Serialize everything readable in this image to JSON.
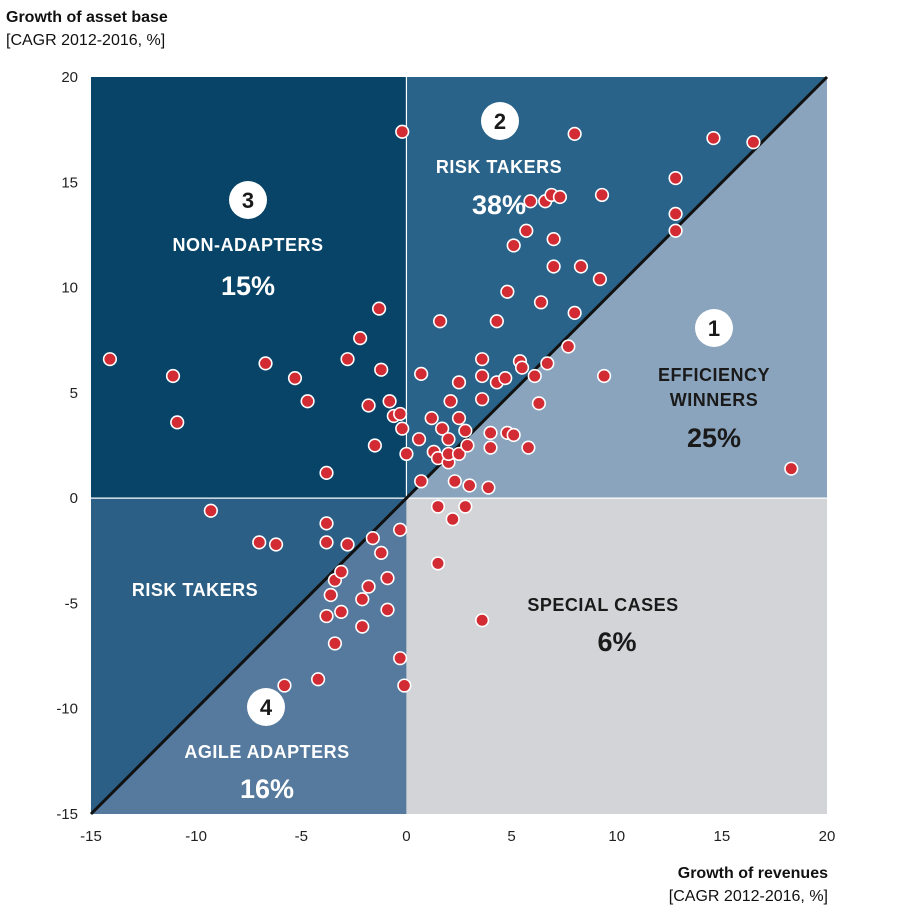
{
  "chart_data": {
    "type": "scatter",
    "ylabel_title": "Growth of asset base",
    "ylabel_sub": "[CAGR 2012-2016, %]",
    "xlabel_title": "Growth of revenues",
    "xlabel_sub": "[CAGR 2012-2016, %]",
    "xlim": [
      -15,
      20
    ],
    "ylim": [
      -15,
      20
    ],
    "xticks": [
      -15,
      -10,
      -5,
      0,
      5,
      10,
      15,
      20
    ],
    "yticks": [
      -15,
      -10,
      -5,
      0,
      5,
      10,
      15,
      20
    ],
    "colors": {
      "non_adapters": "#074468",
      "risk_takers_upper": "#2a6389",
      "efficiency": "#8aa4bd",
      "risk_takers_lower": "#2b5f86",
      "agile": "#557a9e",
      "special": "#d2d4d7",
      "diagonal": "#111111",
      "point": "#d22b33",
      "label_light": "#ffffff",
      "label_dark": "#1a1a1a"
    },
    "quadrants": [
      {
        "id": "risk_takers_upper",
        "number": "2",
        "label": "RISK TAKERS",
        "percent": "38%"
      },
      {
        "id": "non_adapters",
        "number": "3",
        "label": "NON-ADAPTERS",
        "percent": "15%"
      },
      {
        "id": "efficiency",
        "number": "1",
        "label_line1": "EFFICIENCY",
        "label_line2": "WINNERS",
        "percent": "25%"
      },
      {
        "id": "risk_takers_lower",
        "label": "RISK TAKERS"
      },
      {
        "id": "special",
        "label": "SPECIAL CASES",
        "percent": "6%"
      },
      {
        "id": "agile",
        "number": "4",
        "label": "AGILE ADAPTERS",
        "percent": "16%"
      }
    ],
    "points": [
      [
        -14.1,
        6.6
      ],
      [
        -11.1,
        5.8
      ],
      [
        -10.9,
        3.6
      ],
      [
        -9.3,
        -0.6
      ],
      [
        -6.7,
        6.4
      ],
      [
        -7,
        -2.1
      ],
      [
        -6.2,
        -2.2
      ],
      [
        -5.8,
        -8.9
      ],
      [
        -5.3,
        5.7
      ],
      [
        -4.7,
        4.6
      ],
      [
        -4.2,
        -8.6
      ],
      [
        -3.8,
        1.2
      ],
      [
        -3.8,
        -1.2
      ],
      [
        -3.8,
        -2.1
      ],
      [
        -3.6,
        -4.6
      ],
      [
        -3.8,
        -5.6
      ],
      [
        -3.4,
        -6.9
      ],
      [
        -3.4,
        -3.9
      ],
      [
        -3.1,
        -3.5
      ],
      [
        -3.1,
        -5.4
      ],
      [
        -2.8,
        6.6
      ],
      [
        -2.8,
        -2.2
      ],
      [
        -2.2,
        7.6
      ],
      [
        -2.1,
        -4.8
      ],
      [
        -2.1,
        -6.1
      ],
      [
        -1.8,
        4.4
      ],
      [
        -1.8,
        -4.2
      ],
      [
        -1.6,
        -1.9
      ],
      [
        -1.5,
        2.5
      ],
      [
        -1.3,
        9
      ],
      [
        -1.2,
        6.1
      ],
      [
        -1.2,
        -2.6
      ],
      [
        -0.9,
        -3.8
      ],
      [
        -0.9,
        -5.3
      ],
      [
        -0.8,
        4.6
      ],
      [
        -0.6,
        3.9
      ],
      [
        -0.3,
        4
      ],
      [
        -0.3,
        -1.5
      ],
      [
        -0.3,
        -7.6
      ],
      [
        -0.2,
        3.3
      ],
      [
        -0.2,
        17.4
      ],
      [
        -0.1,
        -8.9
      ],
      [
        0,
        2.1
      ],
      [
        0.6,
        2.8
      ],
      [
        0.7,
        0.8
      ],
      [
        0.7,
        5.9
      ],
      [
        1.2,
        3.8
      ],
      [
        1.3,
        2.2
      ],
      [
        1.5,
        1.9
      ],
      [
        1.5,
        -0.4
      ],
      [
        1.5,
        -3.1
      ],
      [
        1.6,
        8.4
      ],
      [
        1.7,
        3.3
      ],
      [
        2,
        1.7
      ],
      [
        2,
        2.1
      ],
      [
        2,
        2.8
      ],
      [
        2.1,
        4.6
      ],
      [
        2.2,
        -1
      ],
      [
        2.3,
        0.8
      ],
      [
        2.5,
        3.8
      ],
      [
        2.5,
        5.5
      ],
      [
        2.5,
        2.1
      ],
      [
        2.8,
        3.2
      ],
      [
        2.8,
        -0.4
      ],
      [
        2.9,
        2.5
      ],
      [
        3,
        0.6
      ],
      [
        3.6,
        6.6
      ],
      [
        3.6,
        4.7
      ],
      [
        3.6,
        5.8
      ],
      [
        3.6,
        -5.8
      ],
      [
        3.9,
        0.5
      ],
      [
        4,
        3.1
      ],
      [
        4,
        2.4
      ],
      [
        4.3,
        8.4
      ],
      [
        4.3,
        5.5
      ],
      [
        4.7,
        5.7
      ],
      [
        4.8,
        3.1
      ],
      [
        4.8,
        9.8
      ],
      [
        5.1,
        3
      ],
      [
        5.1,
        12
      ],
      [
        5.4,
        6.5
      ],
      [
        5.5,
        6.2
      ],
      [
        5.7,
        12.7
      ],
      [
        5.8,
        2.4
      ],
      [
        5.9,
        14.1
      ],
      [
        6.1,
        5.8
      ],
      [
        6.3,
        4.5
      ],
      [
        6.4,
        9.3
      ],
      [
        6.6,
        14.1
      ],
      [
        6.7,
        6.4
      ],
      [
        6.9,
        14.4
      ],
      [
        7,
        12.3
      ],
      [
        7,
        11
      ],
      [
        7.3,
        14.3
      ],
      [
        7.7,
        7.2
      ],
      [
        8,
        8.8
      ],
      [
        8,
        17.3
      ],
      [
        8.3,
        11
      ],
      [
        9.2,
        10.4
      ],
      [
        9.3,
        14.4
      ],
      [
        9.4,
        5.8
      ],
      [
        12.8,
        15.2
      ],
      [
        12.8,
        13.5
      ],
      [
        12.8,
        12.7
      ],
      [
        14.6,
        17.1
      ],
      [
        16.5,
        16.9
      ],
      [
        18.3,
        1.4
      ]
    ]
  }
}
